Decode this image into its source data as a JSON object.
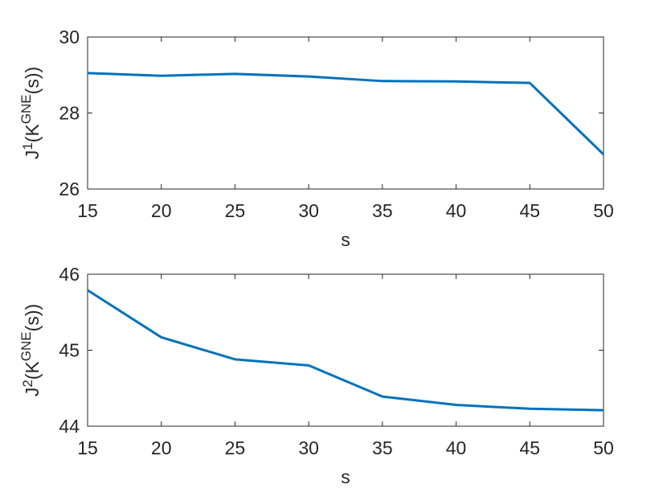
{
  "chart_data": [
    {
      "type": "line",
      "x": [
        15,
        20,
        25,
        30,
        35,
        40,
        45,
        50
      ],
      "values": [
        29.05,
        28.98,
        29.03,
        28.96,
        28.84,
        28.83,
        28.79,
        26.91
      ],
      "color": "#0072bd",
      "xlim": [
        15,
        50
      ],
      "xticks": [
        15,
        20,
        25,
        30,
        35,
        40,
        45,
        50
      ],
      "ylim": [
        26,
        30
      ],
      "yticks": [
        26,
        28,
        30
      ],
      "xlabel": "s",
      "ylabel": [
        "J",
        "1",
        "(K",
        "GNE",
        "(s))"
      ]
    },
    {
      "type": "line",
      "x": [
        15,
        20,
        25,
        30,
        35,
        40,
        45,
        50
      ],
      "values": [
        45.79,
        45.17,
        44.88,
        44.8,
        44.39,
        44.28,
        44.23,
        44.21
      ],
      "color": "#0072bd",
      "xlim": [
        15,
        50
      ],
      "xticks": [
        15,
        20,
        25,
        30,
        35,
        40,
        45,
        50
      ],
      "ylim": [
        44,
        46
      ],
      "yticks": [
        44,
        45,
        46
      ],
      "xlabel": "s",
      "ylabel": [
        "J",
        "2",
        "(K",
        "GNE",
        "(s))"
      ]
    }
  ]
}
